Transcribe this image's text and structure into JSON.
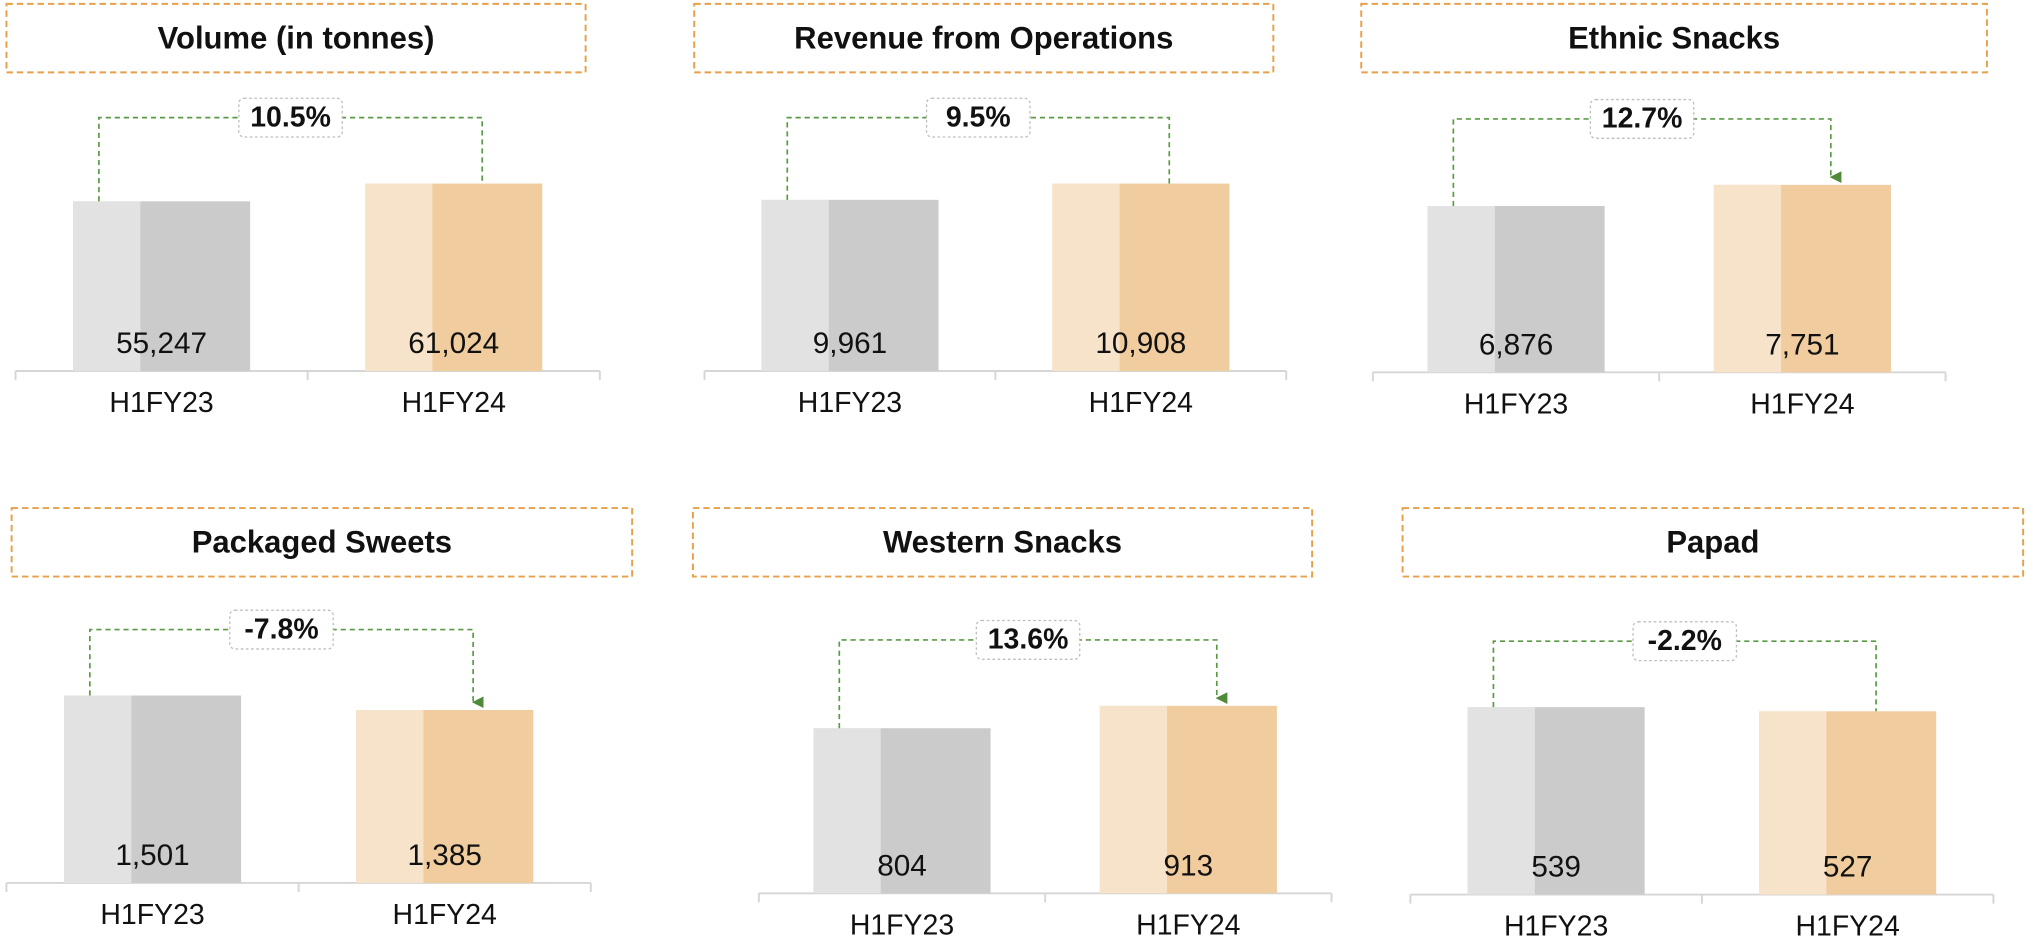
{
  "chart_data": [
    {
      "type": "bar",
      "title": "Volume (in tonnes)",
      "categories": [
        "H1FY23",
        "H1FY24"
      ],
      "values": [
        55247,
        61024
      ],
      "value_labels": [
        "55,247",
        "61,024"
      ],
      "colors": [
        "#cbcbcb",
        "#f0cc9e"
      ],
      "annotation": "10.5%",
      "arrow": false
    },
    {
      "type": "bar",
      "title": "Revenue from Operations",
      "categories": [
        "H1FY23",
        "H1FY24"
      ],
      "values": [
        9961,
        10908
      ],
      "value_labels": [
        "9,961",
        "10,908"
      ],
      "colors": [
        "#cbcbcb",
        "#f0cc9e"
      ],
      "annotation": "9.5%",
      "arrow": false
    },
    {
      "type": "bar",
      "title": "Ethnic Snacks",
      "categories": [
        "H1FY23",
        "H1FY24"
      ],
      "values": [
        6876,
        7751
      ],
      "value_labels": [
        "6,876",
        "7,751"
      ],
      "colors": [
        "#cbcbcb",
        "#f0cc9e"
      ],
      "annotation": "12.7%",
      "arrow": true
    },
    {
      "type": "bar",
      "title": "Packaged Sweets",
      "categories": [
        "H1FY23",
        "H1FY24"
      ],
      "values": [
        1501,
        1385
      ],
      "value_labels": [
        "1,501",
        "1,385"
      ],
      "colors": [
        "#cbcbcb",
        "#f0cc9e"
      ],
      "annotation": "-7.8%",
      "arrow": true
    },
    {
      "type": "bar",
      "title": "Western Snacks",
      "categories": [
        "H1FY23",
        "H1FY24"
      ],
      "values": [
        804,
        913
      ],
      "colors": [
        "#cbcbcb",
        "#f0cc9e"
      ],
      "annotation": "13.6%",
      "arrow": true
    },
    {
      "type": "bar",
      "title": "Papad",
      "categories": [
        "H1FY23",
        "H1FY24"
      ],
      "values": [
        539,
        527
      ],
      "colors": [
        "#cbcbcb",
        "#f0cc9e"
      ],
      "annotation": "-2.2%",
      "arrow": false
    }
  ]
}
